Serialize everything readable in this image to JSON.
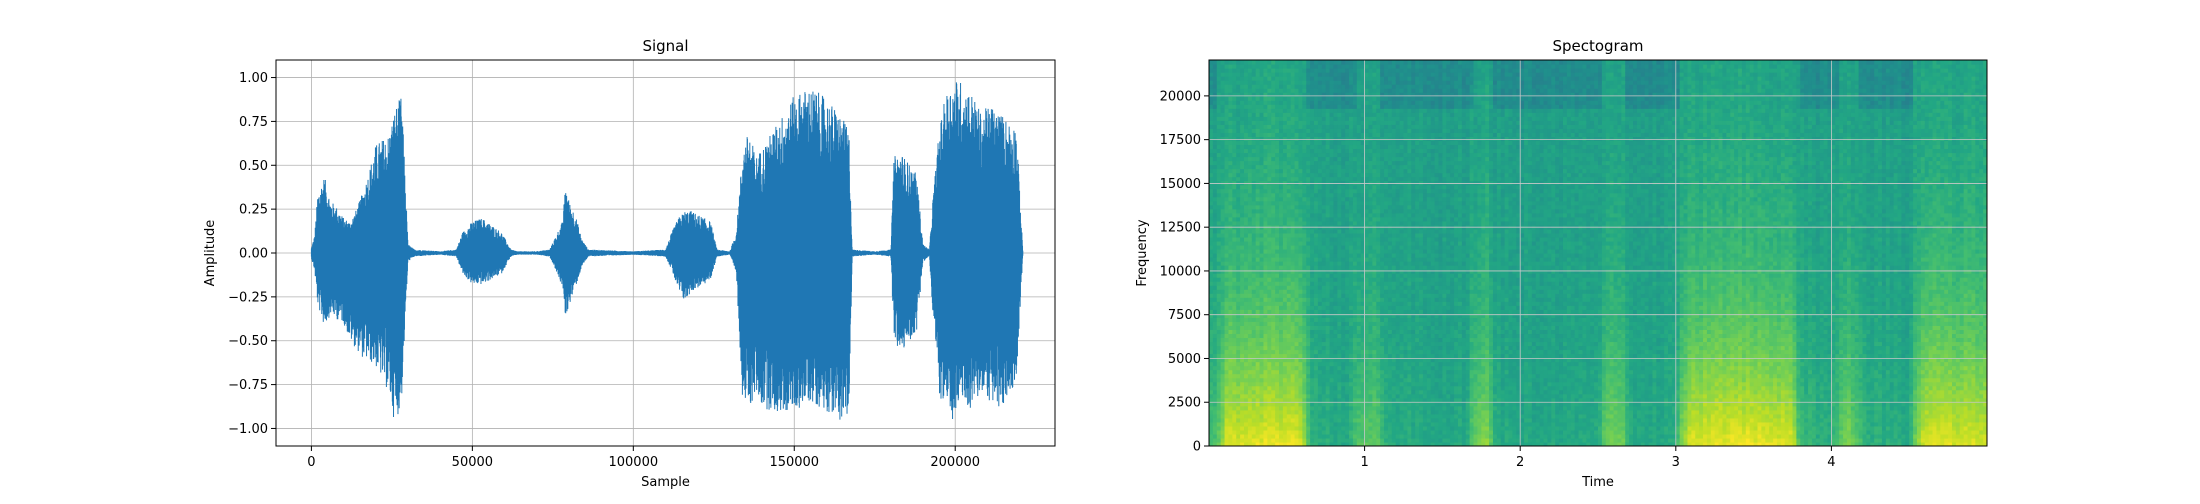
{
  "chart_data": [
    {
      "type": "line",
      "title": "Signal",
      "xlabel": "Sample",
      "ylabel": "Amplitude",
      "xlim": [
        -11000,
        231000
      ],
      "ylim": [
        -1.1,
        1.1
      ],
      "xticks": [
        0,
        50000,
        100000,
        150000,
        200000
      ],
      "xtick_labels": [
        "0",
        "50000",
        "100000",
        "150000",
        "200000"
      ],
      "yticks": [
        -1.0,
        -0.75,
        -0.5,
        -0.25,
        0.0,
        0.25,
        0.5,
        0.75,
        1.0
      ],
      "ytick_labels": [
        "−1.00",
        "−0.75",
        "−0.50",
        "−0.25",
        "0.00",
        "0.25",
        "0.50",
        "0.75",
        "1.00"
      ],
      "grid": true,
      "color": "#1f77b4",
      "envelope": {
        "x": [
          0,
          1000,
          2000,
          4000,
          6000,
          8000,
          10000,
          12000,
          14000,
          16000,
          18000,
          20000,
          22000,
          24000,
          26000,
          28000,
          29000,
          30000,
          32000,
          40000,
          45000,
          47000,
          50000,
          53000,
          56000,
          59000,
          62000,
          64000,
          70000,
          74000,
          76000,
          78000,
          79000,
          80000,
          82000,
          84000,
          86000,
          100000,
          110000,
          112000,
          114000,
          116000,
          118000,
          120000,
          122000,
          124000,
          126000,
          130000,
          132000,
          134000,
          136000,
          138000,
          140000,
          145000,
          150000,
          155000,
          160000,
          164000,
          167000,
          168000,
          175000,
          180000,
          181000,
          183000,
          186000,
          188000,
          190000,
          192000,
          193000,
          195000,
          197000,
          199000,
          201000,
          203000,
          205000,
          208000,
          211000,
          214000,
          217000,
          219000,
          221000
        ],
        "upper": [
          0.03,
          0.1,
          0.35,
          0.44,
          0.3,
          0.26,
          0.2,
          0.18,
          0.25,
          0.35,
          0.48,
          0.62,
          0.65,
          0.68,
          0.83,
          0.9,
          0.5,
          0.05,
          0.02,
          0.01,
          0.02,
          0.12,
          0.18,
          0.2,
          0.16,
          0.12,
          0.02,
          0.01,
          0.01,
          0.02,
          0.1,
          0.18,
          0.4,
          0.3,
          0.22,
          0.08,
          0.02,
          0.01,
          0.02,
          0.12,
          0.2,
          0.24,
          0.24,
          0.22,
          0.2,
          0.18,
          0.02,
          0.01,
          0.12,
          0.6,
          0.7,
          0.55,
          0.6,
          0.75,
          0.9,
          0.95,
          0.88,
          0.8,
          0.7,
          0.02,
          0.01,
          0.02,
          0.55,
          0.58,
          0.5,
          0.45,
          0.05,
          0.02,
          0.3,
          0.7,
          0.9,
          0.98,
          1.0,
          0.95,
          0.92,
          0.8,
          0.85,
          0.8,
          0.75,
          0.73,
          0.02
        ],
        "lower": [
          -0.03,
          -0.1,
          -0.3,
          -0.42,
          -0.35,
          -0.38,
          -0.4,
          -0.5,
          -0.55,
          -0.6,
          -0.62,
          -0.65,
          -0.72,
          -0.8,
          -0.98,
          -0.85,
          -0.45,
          -0.05,
          -0.02,
          -0.01,
          -0.02,
          -0.12,
          -0.18,
          -0.18,
          -0.15,
          -0.12,
          -0.02,
          -0.01,
          -0.01,
          -0.02,
          -0.1,
          -0.2,
          -0.38,
          -0.3,
          -0.2,
          -0.08,
          -0.02,
          -0.01,
          -0.02,
          -0.1,
          -0.22,
          -0.28,
          -0.22,
          -0.2,
          -0.18,
          -0.15,
          -0.02,
          -0.01,
          -0.12,
          -0.85,
          -0.9,
          -0.8,
          -0.88,
          -0.92,
          -0.9,
          -0.85,
          -0.9,
          -0.95,
          -0.98,
          -0.02,
          -0.01,
          -0.02,
          -0.5,
          -0.58,
          -0.5,
          -0.45,
          -0.05,
          -0.02,
          -0.35,
          -0.8,
          -0.92,
          -0.98,
          -0.88,
          -0.85,
          -0.9,
          -0.8,
          -0.85,
          -0.92,
          -0.8,
          -0.72,
          -0.02
        ]
      }
    },
    {
      "type": "heatmap",
      "title": "Spectogram",
      "xlabel": "Time",
      "ylabel": "Frequency",
      "xlim": [
        0.0,
        5.0
      ],
      "ylim": [
        0,
        22050
      ],
      "xticks": [
        1,
        2,
        3,
        4
      ],
      "xtick_labels": [
        "1",
        "2",
        "3",
        "4"
      ],
      "yticks": [
        0,
        2500,
        5000,
        7500,
        10000,
        12500,
        15000,
        17500,
        20000
      ],
      "ytick_labels": [
        "0",
        "2500",
        "5000",
        "7500",
        "10000",
        "12500",
        "15000",
        "17500",
        "20000"
      ],
      "grid": true,
      "colormap": "viridis",
      "activity": {
        "t": [
          0.0,
          0.08,
          0.1,
          0.55,
          0.6,
          0.65,
          0.7,
          0.9,
          0.95,
          1.08,
          1.15,
          1.3,
          1.5,
          1.65,
          1.72,
          1.8,
          1.85,
          2.0,
          2.4,
          2.5,
          2.55,
          2.65,
          2.72,
          3.0,
          3.02,
          3.1,
          3.3,
          3.6,
          3.75,
          3.8,
          3.87,
          3.97,
          4.0,
          4.08,
          4.12,
          4.22,
          4.4,
          4.5,
          4.55,
          4.6,
          4.8,
          5.0
        ],
        "level": [
          0.3,
          0.5,
          0.95,
          0.98,
          0.9,
          0.2,
          0.15,
          0.12,
          0.45,
          0.45,
          0.15,
          0.12,
          0.1,
          0.1,
          0.6,
          0.6,
          0.12,
          0.1,
          0.1,
          0.15,
          0.55,
          0.55,
          0.12,
          0.12,
          0.5,
          0.95,
          1.0,
          1.0,
          0.95,
          0.25,
          0.25,
          0.15,
          0.2,
          0.55,
          0.6,
          0.2,
          0.15,
          0.15,
          0.6,
          0.95,
          0.95,
          0.9
        ]
      }
    }
  ]
}
